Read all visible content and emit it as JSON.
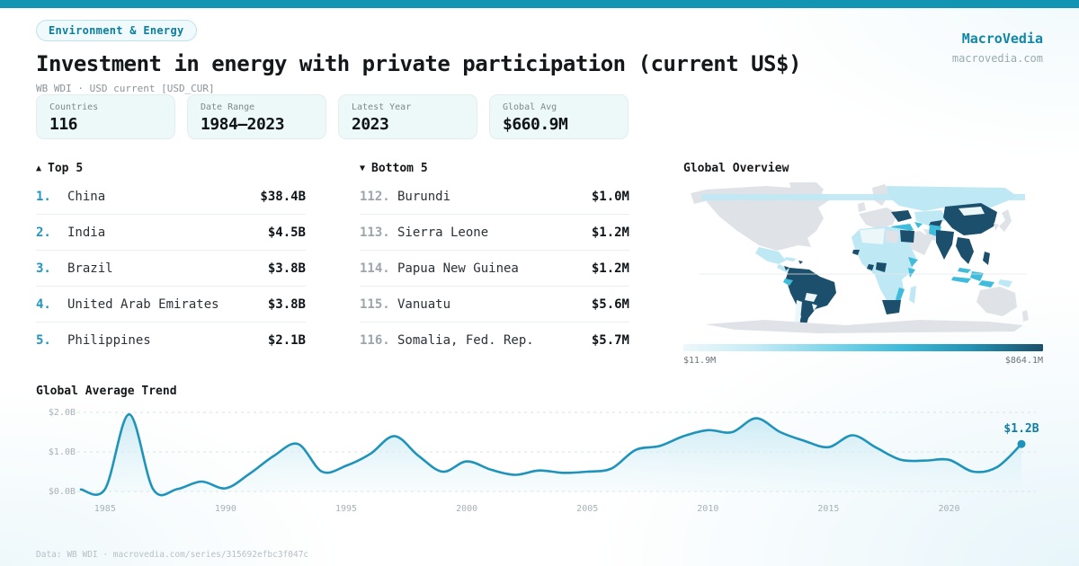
{
  "colors": {
    "accent": "#1295b3",
    "trend_line": "#1f93ba",
    "rank_top": "#1f97c3",
    "rank_bottom": "#9ba5ac"
  },
  "header": {
    "badge": "Environment & Energy",
    "title": "Investment in energy with private participation (current US$)",
    "subtitle": "WB WDI · USD current [USD_CUR]"
  },
  "brand": {
    "name": "MacroVedia",
    "domain": "macrovedia.com"
  },
  "stats": {
    "items": [
      {
        "label": "Countries",
        "value": "116"
      },
      {
        "label": "Date Range",
        "value": "1984—2023"
      },
      {
        "label": "Latest Year",
        "value": "2023"
      },
      {
        "label": "Global Avg",
        "value": "$660.9M"
      }
    ]
  },
  "rankings": {
    "top": {
      "arrow": "▲",
      "title": "Top 5",
      "rows": [
        {
          "rank": "1.",
          "name": "China",
          "value": "$38.4B"
        },
        {
          "rank": "2.",
          "name": "India",
          "value": "$4.5B"
        },
        {
          "rank": "3.",
          "name": "Brazil",
          "value": "$3.8B"
        },
        {
          "rank": "4.",
          "name": "United Arab Emirates",
          "value": "$3.8B"
        },
        {
          "rank": "5.",
          "name": "Philippines",
          "value": "$2.1B"
        }
      ]
    },
    "bottom": {
      "arrow": "▼",
      "title": "Bottom 5",
      "rows": [
        {
          "rank": "112.",
          "name": "Burundi",
          "value": "$1.0M"
        },
        {
          "rank": "113.",
          "name": "Sierra Leone",
          "value": "$1.2M"
        },
        {
          "rank": "114.",
          "name": "Papua New Guinea",
          "value": "$1.2M"
        },
        {
          "rank": "115.",
          "name": "Vanuatu",
          "value": "$5.6M"
        },
        {
          "rank": "116.",
          "name": "Somalia, Fed. Rep.",
          "value": "$5.7M"
        }
      ]
    }
  },
  "map": {
    "title": "Global Overview",
    "legend_min": "$11.9M",
    "legend_max": "$864.1M"
  },
  "trend": {
    "title": "Global Average Trend",
    "end_label": "$1.2B"
  },
  "footer": {
    "text": "Data: WB WDI · macrovedia.com/series/315692efbc3f047c"
  },
  "chart_data": [
    {
      "type": "heatmap",
      "subtype": "choropleth-world-map",
      "title": "Global Overview",
      "colorbar": {
        "min_label": "$11.9M",
        "max_label": "$864.1M",
        "gradient": [
          "#edf8fb",
          "#c5ebf6",
          "#7fd6ea",
          "#3fbcdb",
          "#2392b4",
          "#1b4f6b"
        ]
      },
      "tiers": {
        "high": "#1b4f6b",
        "mid": "#3fbcdb",
        "low": "#bfe8f5",
        "faint": "#ecf7fa",
        "nodata": "#dfe3e7"
      },
      "regions": [
        {
          "id": "alaska",
          "tier": "nodata"
        },
        {
          "id": "canada-us",
          "tier": "nodata"
        },
        {
          "id": "greenland",
          "tier": "nodata"
        },
        {
          "id": "mexico",
          "tier": "low"
        },
        {
          "id": "central-america",
          "tier": "low"
        },
        {
          "id": "honduras",
          "tier": "high"
        },
        {
          "id": "cuba",
          "tier": "low"
        },
        {
          "id": "hispaniola",
          "tier": "high"
        },
        {
          "id": "south-america",
          "tier": "high"
        },
        {
          "id": "ecuador",
          "tier": "mid"
        },
        {
          "id": "bolivia",
          "tier": "faint"
        },
        {
          "id": "chile",
          "tier": "faint"
        },
        {
          "id": "paraguay",
          "tier": "faint"
        },
        {
          "id": "scandinavia",
          "tier": "nodata"
        },
        {
          "id": "uk",
          "tier": "nodata"
        },
        {
          "id": "europe",
          "tier": "nodata"
        },
        {
          "id": "russia",
          "tier": "low"
        },
        {
          "id": "ukraine",
          "tier": "high"
        },
        {
          "id": "kazakhstan",
          "tier": "low"
        },
        {
          "id": "uzbekistan",
          "tier": "high"
        },
        {
          "id": "turkey",
          "tier": "mid"
        },
        {
          "id": "caucasus",
          "tier": "mid"
        },
        {
          "id": "middle-east",
          "tier": "nodata"
        },
        {
          "id": "iran",
          "tier": "nodata"
        },
        {
          "id": "africa-base",
          "tier": "low"
        },
        {
          "id": "maghreb",
          "tier": "faint"
        },
        {
          "id": "libya",
          "tier": "nodata"
        },
        {
          "id": "egypt",
          "tier": "high"
        },
        {
          "id": "senegal",
          "tier": "high"
        },
        {
          "id": "ghana",
          "tier": "high"
        },
        {
          "id": "nigeria",
          "tier": "high"
        },
        {
          "id": "ethiopia",
          "tier": "mid"
        },
        {
          "id": "kenya",
          "tier": "mid"
        },
        {
          "id": "mozambique",
          "tier": "mid"
        },
        {
          "id": "south-africa",
          "tier": "high"
        },
        {
          "id": "madagascar",
          "tier": "low"
        },
        {
          "id": "pakistan",
          "tier": "mid"
        },
        {
          "id": "india",
          "tier": "high"
        },
        {
          "id": "china",
          "tier": "high"
        },
        {
          "id": "mongolia",
          "tier": "faint"
        },
        {
          "id": "korea",
          "tier": "nodata"
        },
        {
          "id": "japan",
          "tier": "nodata"
        },
        {
          "id": "sea-mainland",
          "tier": "high"
        },
        {
          "id": "malaysia",
          "tier": "mid"
        },
        {
          "id": "borneo",
          "tier": "mid"
        },
        {
          "id": "indonesia",
          "tier": "mid"
        },
        {
          "id": "philippines",
          "tier": "high"
        },
        {
          "id": "papua-new-guinea",
          "tier": "low"
        },
        {
          "id": "australia",
          "tier": "nodata"
        },
        {
          "id": "new-zealand",
          "tier": "nodata"
        },
        {
          "id": "antarctica",
          "tier": "nodata"
        },
        {
          "id": "arctic-band",
          "tier": "low"
        }
      ]
    },
    {
      "type": "line",
      "title": "Global Average Trend",
      "x": [
        1984,
        1985,
        1986,
        1987,
        1988,
        1989,
        1990,
        1991,
        1992,
        1993,
        1994,
        1995,
        1996,
        1997,
        1998,
        1999,
        2000,
        2001,
        2002,
        2003,
        2004,
        2005,
        2006,
        2007,
        2008,
        2009,
        2010,
        2011,
        2012,
        2013,
        2014,
        2015,
        2016,
        2017,
        2018,
        2019,
        2020,
        2021,
        2022,
        2023
      ],
      "values": [
        0.05,
        0.06,
        1.95,
        0.05,
        0.06,
        0.25,
        0.08,
        0.45,
        0.9,
        1.2,
        0.5,
        0.65,
        0.95,
        1.4,
        0.9,
        0.5,
        0.76,
        0.55,
        0.42,
        0.53,
        0.47,
        0.5,
        0.58,
        1.05,
        1.15,
        1.4,
        1.55,
        1.5,
        1.85,
        1.5,
        1.28,
        1.12,
        1.42,
        1.1,
        0.8,
        0.78,
        0.8,
        0.5,
        0.62,
        1.2
      ],
      "unit": "USD billions",
      "ylim": [
        0,
        2.0
      ],
      "yticks": {
        "values": [
          0,
          1,
          2
        ],
        "labels": [
          "$0.0B",
          "$1.0B",
          "$2.0B"
        ]
      },
      "xticks": [
        1985,
        1990,
        1995,
        2000,
        2005,
        2010,
        2015,
        2020
      ],
      "grid": "dashed-horizontal",
      "end_label": "$1.2B",
      "line_color": "#1f93ba"
    }
  ]
}
